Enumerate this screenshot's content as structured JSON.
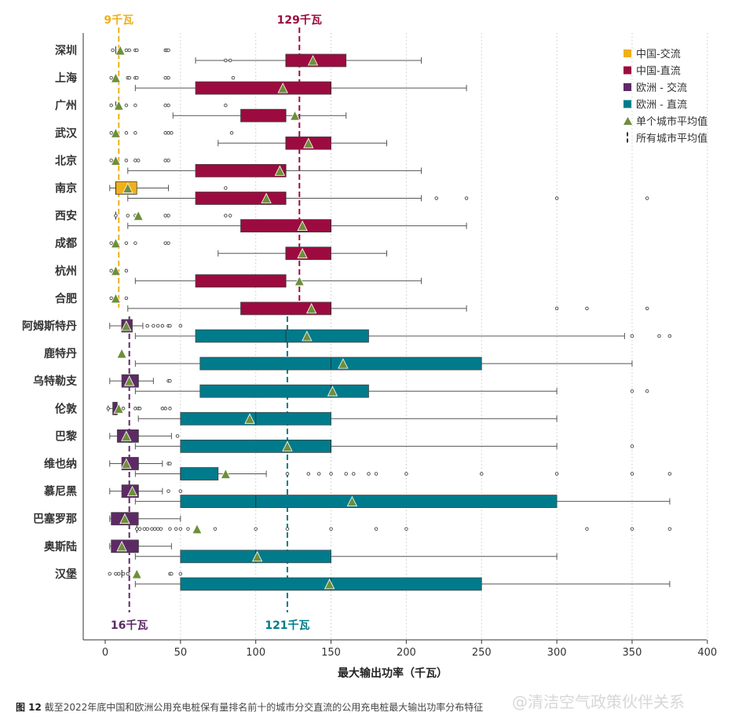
{
  "chart_data": {
    "type": "boxplot",
    "xlabel": "最大输出功率（千瓦）",
    "xlim": [
      -15,
      400
    ],
    "xticks": [
      0,
      50,
      100,
      150,
      200,
      250,
      300,
      350,
      400
    ],
    "grid": "vertical dotted",
    "legend_position": "top-right",
    "colors": {
      "cn_ac": "#efb01a",
      "cn_dc": "#9c0b3f",
      "eu_ac": "#5e2a66",
      "eu_dc": "#007b8c",
      "avg": "#6e8f3a"
    },
    "legend": [
      {
        "key": "cn_ac",
        "label": "中国-交流",
        "marker": "square"
      },
      {
        "key": "cn_dc",
        "label": "中国-直流",
        "marker": "square"
      },
      {
        "key": "eu_ac",
        "label": "欧洲 - 交流",
        "marker": "square"
      },
      {
        "key": "eu_dc",
        "label": "欧洲 - 直流",
        "marker": "square"
      },
      {
        "key": "avg",
        "label": "单个城市平均值",
        "marker": "triangle"
      },
      {
        "key": "allavg",
        "label": "所有城市平均值",
        "marker": "dash"
      }
    ],
    "reference_lines": [
      {
        "value": 9,
        "label": "9千瓦",
        "color": "#efb01a",
        "position": "top",
        "group": "cn"
      },
      {
        "value": 129,
        "label": "129千瓦",
        "color": "#9c0b3f",
        "position": "top",
        "group": "cn"
      },
      {
        "value": 16,
        "label": "16千瓦",
        "color": "#5e2a66",
        "position": "bottom",
        "group": "eu"
      },
      {
        "value": 121,
        "label": "121千瓦",
        "color": "#007b8c",
        "position": "bottom",
        "group": "eu"
      }
    ],
    "cities": [
      {
        "name": "深圳",
        "group": "cn",
        "ac": {
          "box": [
            7,
            7,
            7
          ],
          "whisk": [
            7,
            7
          ],
          "mean": 10,
          "out": [
            5,
            14,
            16,
            20,
            21,
            40,
            41,
            42
          ]
        },
        "dc": {
          "box": [
            120,
            120,
            160
          ],
          "whisk": [
            60,
            210
          ],
          "mean": 138,
          "out": [
            80,
            83
          ]
        }
      },
      {
        "name": "上海",
        "group": "cn",
        "ac": {
          "box": [
            7,
            7,
            7
          ],
          "whisk": [
            7,
            7
          ],
          "mean": 7,
          "out": [
            4,
            15,
            16,
            20,
            21,
            40,
            42,
            85
          ]
        },
        "dc": {
          "box": [
            60,
            150,
            150
          ],
          "whisk": [
            20,
            240
          ],
          "mean": 118,
          "out": []
        }
      },
      {
        "name": "广州",
        "group": "cn",
        "ac": {
          "box": [
            7,
            7,
            7
          ],
          "whisk": [
            7,
            7
          ],
          "mean": 9,
          "out": [
            4,
            14,
            20,
            40,
            42,
            80
          ]
        },
        "dc": {
          "box": [
            90,
            120,
            120
          ],
          "whisk": [
            45,
            160
          ],
          "mean": 126,
          "out": []
        }
      },
      {
        "name": "武汉",
        "group": "cn",
        "ac": {
          "box": [
            7,
            7,
            7
          ],
          "whisk": [
            7,
            7
          ],
          "mean": 7,
          "out": [
            4,
            14,
            20,
            40,
            42,
            44,
            84
          ]
        },
        "dc": {
          "box": [
            120,
            120,
            150
          ],
          "whisk": [
            75,
            187
          ],
          "mean": 135,
          "out": []
        }
      },
      {
        "name": "北京",
        "group": "cn",
        "ac": {
          "box": [
            7,
            7,
            7
          ],
          "whisk": [
            7,
            7
          ],
          "mean": 7,
          "out": [
            4,
            14,
            20,
            22,
            40,
            42
          ]
        },
        "dc": {
          "box": [
            60,
            120,
            120
          ],
          "whisk": [
            15,
            210
          ],
          "mean": 116,
          "out": []
        }
      },
      {
        "name": "南京",
        "group": "cn",
        "ac": {
          "box": [
            7,
            7,
            21
          ],
          "whisk": [
            3,
            42
          ],
          "mean": 15,
          "out": [
            80
          ]
        },
        "dc": {
          "box": [
            60,
            120,
            120
          ],
          "whisk": [
            15,
            210
          ],
          "mean": 107,
          "out": [
            220,
            240,
            300,
            360
          ]
        }
      },
      {
        "name": "西安",
        "group": "cn",
        "ac": {
          "box": [
            7,
            7,
            7
          ],
          "whisk": [
            7,
            7
          ],
          "mean": 22,
          "out": [
            7,
            15,
            20,
            40,
            42,
            80,
            83
          ]
        },
        "dc": {
          "box": [
            90,
            150,
            150
          ],
          "whisk": [
            15,
            240
          ],
          "mean": 131,
          "out": []
        }
      },
      {
        "name": "成都",
        "group": "cn",
        "ac": {
          "box": [
            7,
            7,
            7
          ],
          "whisk": [
            7,
            7
          ],
          "mean": 7,
          "out": [
            4,
            14,
            20,
            40,
            42
          ]
        },
        "dc": {
          "box": [
            120,
            120,
            150
          ],
          "whisk": [
            75,
            187
          ],
          "mean": 131,
          "out": []
        }
      },
      {
        "name": "杭州",
        "group": "cn",
        "ac": {
          "box": [
            7,
            7,
            7
          ],
          "whisk": [
            7,
            7
          ],
          "mean": 7,
          "out": [
            4,
            14
          ]
        },
        "dc": {
          "box": [
            60,
            120,
            120
          ],
          "whisk": [
            20,
            210
          ],
          "mean": 129,
          "out": []
        }
      },
      {
        "name": "合肥",
        "group": "cn",
        "ac": {
          "box": [
            7,
            7,
            7
          ],
          "whisk": [
            7,
            7
          ],
          "mean": 7,
          "out": [
            4,
            14
          ]
        },
        "dc": {
          "box": [
            90,
            150,
            150
          ],
          "whisk": [
            15,
            240
          ],
          "mean": 137,
          "out": [
            300,
            320,
            360
          ]
        }
      },
      {
        "name": "阿姆斯特丹",
        "group": "eu",
        "ac": {
          "box": [
            11,
            11,
            18
          ],
          "whisk": [
            3,
            25
          ],
          "mean": 14,
          "out": [
            28,
            32,
            35,
            38,
            42,
            43,
            50
          ]
        },
        "dc": {
          "box": [
            60,
            120,
            175
          ],
          "whisk": [
            20,
            345
          ],
          "mean": 134,
          "out": [
            350,
            368,
            375
          ]
        }
      },
      {
        "name": "鹿特丹",
        "group": "eu",
        "ac": {
          "box": [
            11,
            11,
            11
          ],
          "whisk": [
            11,
            11
          ],
          "mean": 11,
          "out": []
        },
        "dc": {
          "box": [
            63,
            150,
            250
          ],
          "whisk": [
            20,
            350
          ],
          "mean": 158,
          "out": []
        }
      },
      {
        "name": "乌特勒支",
        "group": "eu",
        "ac": {
          "box": [
            11,
            22,
            22
          ],
          "whisk": [
            3,
            32
          ],
          "mean": 16,
          "out": [
            42,
            43
          ]
        },
        "dc": {
          "box": [
            63,
            150,
            175
          ],
          "whisk": [
            20,
            300
          ],
          "mean": 151,
          "out": [
            350,
            360
          ]
        }
      },
      {
        "name": "伦敦",
        "group": "eu",
        "ac": {
          "box": [
            5,
            7,
            8
          ],
          "whisk": [
            2,
            8
          ],
          "mean": 9,
          "out": [
            2,
            12,
            20,
            22,
            23,
            38,
            40,
            43
          ]
        },
        "dc": {
          "box": [
            50,
            100,
            150
          ],
          "whisk": [
            22,
            300
          ],
          "mean": 96,
          "out": []
        }
      },
      {
        "name": "巴黎",
        "group": "eu",
        "ac": {
          "box": [
            8,
            22,
            22
          ],
          "whisk": [
            3,
            44
          ],
          "mean": 14,
          "out": [
            48
          ]
        },
        "dc": {
          "box": [
            50,
            150,
            150
          ],
          "whisk": [
            20,
            300
          ],
          "mean": 121,
          "out": [
            350
          ]
        }
      },
      {
        "name": "维也纳",
        "group": "eu",
        "ac": {
          "box": [
            11,
            22,
            22
          ],
          "whisk": [
            3,
            38
          ],
          "mean": 14,
          "out": [
            42,
            43
          ]
        },
        "dc": {
          "box": [
            50,
            50,
            75
          ],
          "whisk": [
            20,
            107
          ],
          "mean": 80,
          "out": [
            121,
            135,
            142,
            150,
            160,
            165,
            175,
            180,
            200,
            250,
            300,
            350,
            375
          ]
        }
      },
      {
        "name": "慕尼黑",
        "group": "eu",
        "ac": {
          "box": [
            11,
            22,
            22
          ],
          "whisk": [
            3,
            38
          ],
          "mean": 18,
          "out": [
            42,
            50
          ]
        },
        "dc": {
          "box": [
            50,
            100,
            300
          ],
          "whisk": [
            20,
            375
          ],
          "mean": 164,
          "out": []
        }
      },
      {
        "name": "巴塞罗那",
        "group": "eu",
        "ac": {
          "box": [
            4,
            11,
            22
          ],
          "whisk": [
            3,
            50
          ],
          "mean": 13,
          "out": []
        },
        "dc": {
          "box": [
            21,
            21,
            21
          ],
          "whisk": [
            21,
            21
          ],
          "mean": 61,
          "out": [
            21,
            23,
            26,
            28,
            31,
            33,
            35,
            37,
            43,
            47,
            50,
            55,
            73,
            100,
            121,
            150,
            180,
            200,
            320,
            350,
            375
          ]
        }
      },
      {
        "name": "奥斯陆",
        "group": "eu",
        "ac": {
          "box": [
            4,
            22,
            22
          ],
          "whisk": [
            3,
            44
          ],
          "mean": 11,
          "out": []
        },
        "dc": {
          "box": [
            50,
            100,
            150
          ],
          "whisk": [
            20,
            300
          ],
          "mean": 101,
          "out": []
        }
      },
      {
        "name": "汉堡",
        "group": "eu",
        "ac": {
          "box": [
            11,
            11,
            11
          ],
          "whisk": [
            11,
            11
          ],
          "mean": 21,
          "out": [
            3,
            7,
            9,
            12,
            15,
            43,
            44,
            50
          ]
        },
        "dc": {
          "box": [
            50,
            150,
            250
          ],
          "whisk": [
            20,
            375
          ],
          "mean": 149,
          "out": []
        }
      }
    ]
  },
  "caption": {
    "figure_label": "图 12",
    "text": "截至2022年底中国和欧洲公用充电桩保有量排名前十的城市分交直流的公用充电桩最大输出功率分布特征"
  },
  "watermark": "@清洁空气政策伙伴关系"
}
